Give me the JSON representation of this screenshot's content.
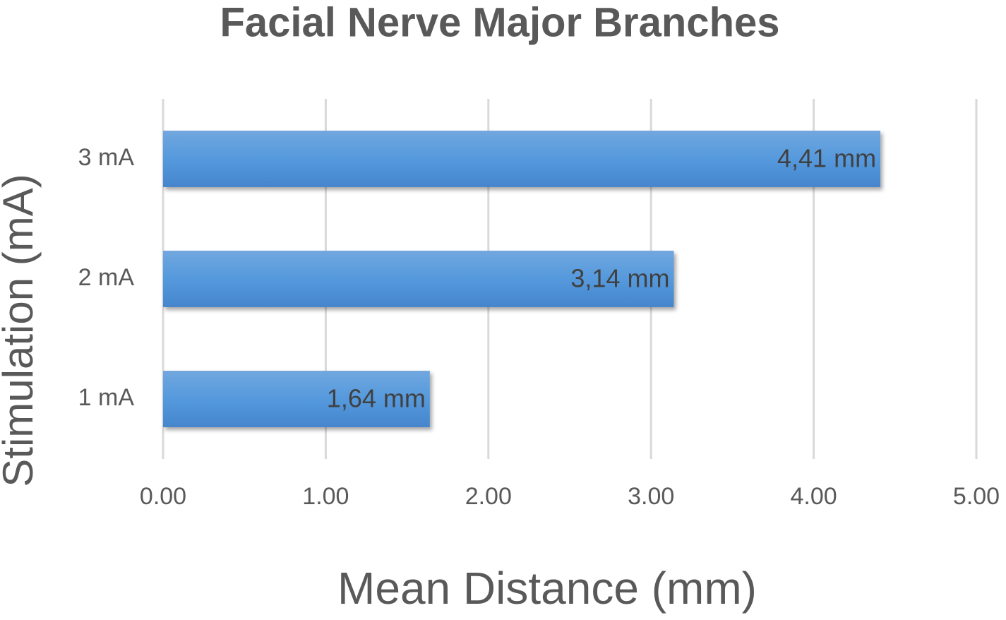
{
  "chart_data": {
    "type": "bar",
    "orientation": "horizontal",
    "title": "Facial Nerve Major Branches",
    "x_label": "Mean Distance (mm)",
    "y_label": "Stimulation (mA)",
    "categories": [
      "1 mA",
      "2 mA",
      "3 mA"
    ],
    "values": [
      1.64,
      3.14,
      4.41
    ],
    "value_labels": [
      "1,64 mm",
      "3,14 mm",
      "4,41 mm"
    ],
    "color": "#5b9bd5",
    "xlim": [
      0,
      5
    ],
    "xticks": [
      {
        "value": 0,
        "label": "0.00"
      },
      {
        "value": 1,
        "label": "1.00"
      },
      {
        "value": 2,
        "label": "2.00"
      },
      {
        "value": 3,
        "label": "3.00"
      },
      {
        "value": 4,
        "label": "4.00"
      },
      {
        "value": 5,
        "label": "5.00"
      }
    ],
    "grid": true
  }
}
